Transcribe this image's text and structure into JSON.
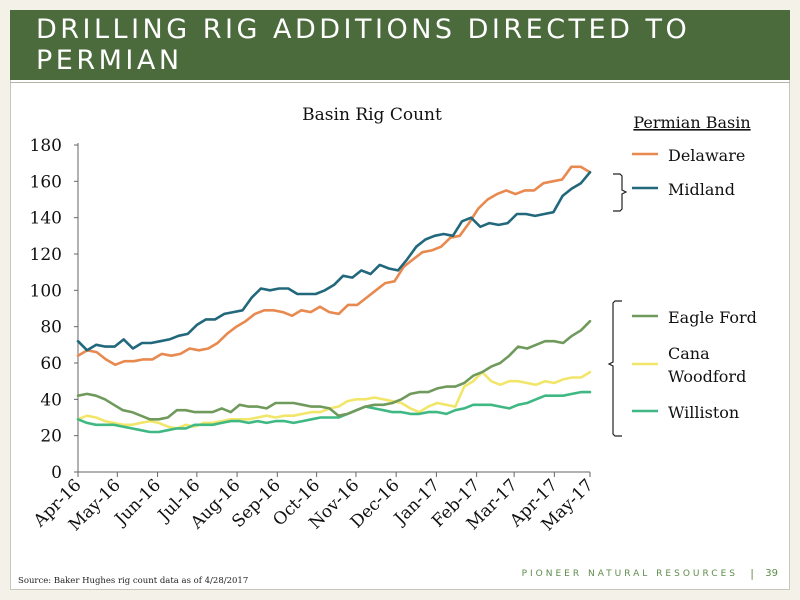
{
  "slide": {
    "title": "DRILLING RIG ADDITIONS DIRECTED TO PERMIAN",
    "source": "Source: Baker Hughes rig count data as of 4/28/2017",
    "brand": "PIONEER NATURAL RESOURCES",
    "separator": "|",
    "page_number": "39"
  },
  "legend": {
    "group_title": "Permian Basin"
  },
  "chart_data": {
    "type": "line",
    "title": "Basin Rig Count",
    "xlabel": "",
    "ylabel": "",
    "ylim": [
      0,
      180
    ],
    "yticks": [
      "0",
      "20",
      "40",
      "60",
      "80",
      "100",
      "120",
      "140",
      "160",
      "180"
    ],
    "x_range": [
      0,
      56
    ],
    "xticks": [
      {
        "label": "Apr-16",
        "x": 0
      },
      {
        "label": "May-16",
        "x": 4.3
      },
      {
        "label": "Jun-16",
        "x": 8.7
      },
      {
        "label": "Jul-16",
        "x": 13
      },
      {
        "label": "Aug-16",
        "x": 17.4
      },
      {
        "label": "Sep-16",
        "x": 21.8
      },
      {
        "label": "Oct-16",
        "x": 26.1
      },
      {
        "label": "Nov-16",
        "x": 30.4
      },
      {
        "label": "Dec-16",
        "x": 34.8
      },
      {
        "label": "Jan-17",
        "x": 39.2
      },
      {
        "label": "Feb-17",
        "x": 43.6
      },
      {
        "label": "Mar-17",
        "x": 47.7
      },
      {
        "label": "Apr-17",
        "x": 52.1
      },
      {
        "label": "May-17",
        "x": 56
      }
    ],
    "grid": false,
    "legend_placement": "right",
    "series": [
      {
        "name": "Delaware",
        "color": "#e8894f",
        "values": [
          64,
          67,
          66,
          62,
          59,
          61,
          61,
          62,
          62,
          65,
          64,
          65,
          68,
          67,
          68,
          71,
          76,
          80,
          83,
          87,
          89,
          89,
          88,
          86,
          89,
          88,
          91,
          88,
          87,
          92,
          92,
          96,
          100,
          104,
          105,
          113,
          117,
          121,
          122,
          124,
          129,
          130,
          137,
          145,
          150,
          153,
          155,
          153,
          155,
          155,
          159,
          160,
          161,
          168,
          168,
          165
        ]
      },
      {
        "name": "Midland",
        "color": "#22687c",
        "values": [
          72,
          67,
          70,
          69,
          69,
          73,
          68,
          71,
          71,
          72,
          73,
          75,
          76,
          81,
          84,
          84,
          87,
          88,
          89,
          96,
          101,
          100,
          101,
          101,
          98,
          98,
          98,
          100,
          103,
          108,
          107,
          111,
          109,
          114,
          112,
          111,
          117,
          124,
          128,
          130,
          131,
          130,
          138,
          140,
          135,
          137,
          136,
          137,
          142,
          142,
          141,
          142,
          143,
          152,
          156,
          159,
          165
        ]
      },
      {
        "name": "Eagle Ford",
        "color": "#6f9a5c",
        "values": [
          42,
          43,
          42,
          40,
          37,
          34,
          33,
          31,
          29,
          29,
          30,
          34,
          34,
          33,
          33,
          33,
          35,
          33,
          37,
          36,
          36,
          35,
          38,
          38,
          38,
          37,
          36,
          36,
          35,
          31,
          32,
          34,
          36,
          37,
          37,
          38,
          40,
          43,
          44,
          44,
          46,
          47,
          47,
          49,
          53,
          55,
          58,
          60,
          64,
          69,
          68,
          70,
          72,
          72,
          71,
          75,
          78,
          83
        ]
      },
      {
        "name": "Cana Woodford",
        "color": "#f2e66a",
        "values": [
          29,
          31,
          30,
          28,
          27,
          26,
          26,
          27,
          28,
          27,
          25,
          24,
          26,
          25,
          27,
          27,
          28,
          29,
          29,
          29,
          30,
          31,
          30,
          31,
          31,
          32,
          33,
          33,
          35,
          36,
          39,
          40,
          40,
          41,
          40,
          39,
          38,
          35,
          33,
          36,
          38,
          37,
          36,
          47,
          50,
          55,
          50,
          48,
          50,
          50,
          49,
          48,
          50,
          49,
          51,
          52,
          52,
          55
        ]
      },
      {
        "name": "Williston",
        "color": "#3fb883",
        "values": [
          29,
          27,
          26,
          26,
          26,
          25,
          24,
          23,
          22,
          22,
          23,
          24,
          24,
          26,
          26,
          26,
          27,
          28,
          28,
          27,
          28,
          27,
          28,
          28,
          27,
          28,
          29,
          30,
          30,
          30,
          32,
          34,
          36,
          35,
          34,
          33,
          33,
          32,
          32,
          33,
          33,
          32,
          34,
          35,
          37,
          37,
          37,
          36,
          35,
          37,
          38,
          40,
          42,
          42,
          42,
          43,
          44,
          44
        ]
      }
    ]
  }
}
